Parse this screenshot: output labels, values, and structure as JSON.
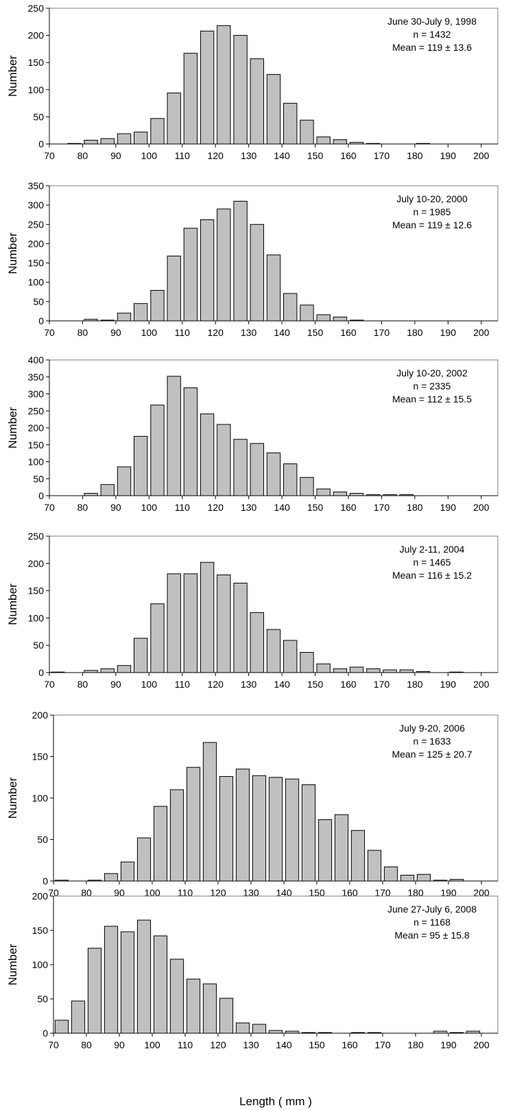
{
  "figure": {
    "xlabel": "Length ( mm )"
  },
  "chart_data": [
    {
      "type": "bar",
      "ylabel": "Number",
      "ylim": [
        0,
        250
      ],
      "yticks": [
        0,
        50,
        100,
        150,
        200,
        250
      ],
      "xlim": [
        70,
        205
      ],
      "xticks": [
        70,
        80,
        90,
        100,
        110,
        120,
        130,
        140,
        150,
        160,
        170,
        180,
        190,
        200
      ],
      "bin_width": 5,
      "grid": false,
      "annotation": [
        "June 30-July 9, 1998",
        "n = 1432",
        "Mean = 119  ± 13.6"
      ],
      "x": [
        75,
        80,
        85,
        90,
        95,
        100,
        105,
        110,
        115,
        120,
        125,
        130,
        135,
        140,
        145,
        150,
        155,
        160,
        165,
        170,
        175,
        180,
        185,
        190,
        195,
        200
      ],
      "values": [
        1,
        7,
        10,
        19,
        22,
        47,
        94,
        167,
        208,
        218,
        200,
        157,
        128,
        75,
        44,
        13,
        8,
        3,
        1,
        0,
        0,
        1,
        0,
        0,
        0,
        0
      ]
    },
    {
      "type": "bar",
      "ylabel": "Number",
      "ylim": [
        0,
        350
      ],
      "yticks": [
        0,
        50,
        100,
        150,
        200,
        250,
        300,
        350
      ],
      "xlim": [
        70,
        205
      ],
      "xticks": [
        70,
        80,
        90,
        100,
        110,
        120,
        130,
        140,
        150,
        160,
        170,
        180,
        190,
        200
      ],
      "bin_width": 5,
      "grid": false,
      "annotation": [
        "July 10-20, 2000",
        "n = 1985",
        "Mean = 119  ± 12.6"
      ],
      "x": [
        80,
        85,
        90,
        95,
        100,
        105,
        110,
        115,
        120,
        125,
        130,
        135,
        140,
        145,
        150,
        155,
        160,
        165
      ],
      "values": [
        4,
        2,
        20,
        45,
        79,
        168,
        240,
        262,
        290,
        310,
        250,
        171,
        71,
        41,
        16,
        10,
        2,
        0
      ]
    },
    {
      "type": "bar",
      "ylabel": "Number",
      "ylim": [
        0,
        400
      ],
      "yticks": [
        0,
        50,
        100,
        150,
        200,
        250,
        300,
        350,
        400
      ],
      "xlim": [
        70,
        205
      ],
      "xticks": [
        70,
        80,
        90,
        100,
        110,
        120,
        130,
        140,
        150,
        160,
        170,
        180,
        190,
        200
      ],
      "bin_width": 5,
      "grid": false,
      "annotation": [
        "July 10-20, 2002",
        "n = 2335",
        "Mean = 112  ± 15.5"
      ],
      "x": [
        80,
        85,
        90,
        95,
        100,
        105,
        110,
        115,
        120,
        125,
        130,
        135,
        140,
        145,
        150,
        155,
        160,
        165,
        170,
        175
      ],
      "values": [
        7,
        33,
        85,
        175,
        267,
        352,
        318,
        241,
        210,
        166,
        154,
        126,
        94,
        54,
        20,
        11,
        7,
        3,
        3,
        3
      ]
    },
    {
      "type": "bar",
      "ylabel": "Number",
      "ylim": [
        0,
        250
      ],
      "yticks": [
        0,
        50,
        100,
        150,
        200,
        250
      ],
      "xlim": [
        70,
        205
      ],
      "xticks": [
        70,
        80,
        90,
        100,
        110,
        120,
        130,
        140,
        150,
        160,
        170,
        180,
        190,
        200
      ],
      "bin_width": 5,
      "grid": false,
      "annotation": [
        "July 2-11, 2004",
        "n = 1465",
        "Mean = 116  ± 15.2"
      ],
      "x": [
        70,
        80,
        85,
        90,
        95,
        100,
        105,
        110,
        115,
        120,
        125,
        130,
        135,
        140,
        145,
        150,
        155,
        160,
        165,
        170,
        175,
        180,
        190
      ],
      "values": [
        1,
        4,
        7,
        13,
        63,
        126,
        181,
        181,
        202,
        179,
        164,
        110,
        79,
        59,
        37,
        16,
        7,
        10,
        7,
        5,
        5,
        2,
        1
      ]
    },
    {
      "type": "bar",
      "ylabel": "Number",
      "ylim": [
        0,
        200
      ],
      "yticks": [
        0,
        50,
        100,
        150,
        200
      ],
      "xlim": [
        70,
        205
      ],
      "xticks": [
        70,
        80,
        90,
        100,
        110,
        120,
        130,
        140,
        150,
        160,
        170,
        180,
        190,
        200
      ],
      "bin_width": 5,
      "grid": false,
      "annotation": [
        "July 9-20, 2006",
        "n = 1633",
        "Mean = 125  ± 20.7"
      ],
      "x": [
        70,
        80,
        85,
        90,
        95,
        100,
        105,
        110,
        115,
        120,
        125,
        130,
        135,
        140,
        145,
        150,
        155,
        160,
        165,
        170,
        175,
        180,
        185,
        190
      ],
      "values": [
        1,
        1,
        9,
        23,
        52,
        90,
        110,
        137,
        167,
        126,
        135,
        127,
        125,
        123,
        116,
        74,
        80,
        61,
        37,
        17,
        7,
        8,
        1,
        2
      ]
    },
    {
      "type": "bar",
      "ylabel": "Number",
      "ylim": [
        0,
        200
      ],
      "yticks": [
        0,
        50,
        100,
        150,
        200
      ],
      "xlim": [
        70,
        205
      ],
      "xticks": [
        70,
        80,
        90,
        100,
        110,
        120,
        130,
        140,
        150,
        160,
        170,
        180,
        190,
        200
      ],
      "bin_width": 5,
      "grid": false,
      "annotation": [
        "June 27-July 6, 2008",
        "n = 1168",
        "Mean = 95  ± 15.8"
      ],
      "x": [
        70,
        75,
        80,
        85,
        90,
        95,
        100,
        105,
        110,
        115,
        120,
        125,
        130,
        135,
        140,
        145,
        150,
        160,
        165,
        185,
        190,
        195
      ],
      "values": [
        19,
        47,
        124,
        156,
        148,
        165,
        142,
        108,
        79,
        72,
        51,
        15,
        13,
        4,
        3,
        1,
        1,
        1,
        1,
        3,
        1,
        3
      ]
    }
  ]
}
